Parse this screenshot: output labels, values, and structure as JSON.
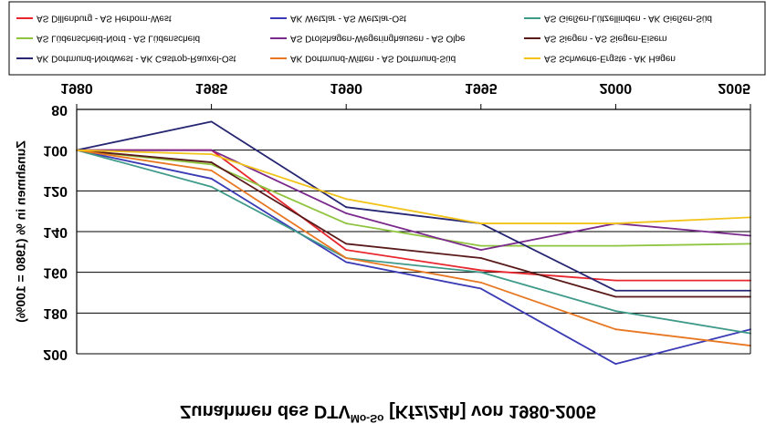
{
  "chart_data": {
    "type": "line",
    "title": "Zunahmen des DTV",
    "title_sup": "Mo-So",
    "title_suffix": " [Kfz/24h] von 1980-2005",
    "ylabel": "Zunahmen in % (1980 = 100%)",
    "xlabel": "",
    "orientation": "mirrored (image flipped vertically)",
    "x": [
      1980,
      1985,
      1990,
      1995,
      2000,
      2005
    ],
    "x_tick_labels": [
      "1980",
      "1985",
      "1990",
      "1995",
      "2000",
      "2005"
    ],
    "ylim": [
      80,
      200
    ],
    "y_ticks": [
      80,
      100,
      120,
      140,
      160,
      180,
      200
    ],
    "y_tick_labels": [
      "80",
      "100",
      "120",
      "140",
      "160",
      "180",
      "200"
    ],
    "grid": true,
    "legend_position": "top",
    "series": [
      {
        "name": "AS Dillenburg - AS Herborn-West",
        "color": "#e8262e",
        "values": [
          100,
          100,
          149,
          159,
          164,
          164
        ]
      },
      {
        "name": "AK Wetzlar - AS Wetzlar-Ost",
        "color": "#3b3bb5",
        "values": [
          100,
          114,
          155,
          168,
          205,
          188
        ]
      },
      {
        "name": "AS Gießen-Lützellinden - AK Gießen-Süd",
        "color": "#3f9a8a",
        "values": [
          100,
          118,
          153,
          160,
          179,
          190
        ]
      },
      {
        "name": "AS Lüdenscheid-Nord - AS Lüdenscheid",
        "color": "#8fc43f",
        "values": [
          100,
          107,
          136,
          147,
          147,
          146
        ]
      },
      {
        "name": "AS Drolshagen-Wegeringhausen - AS Olpe",
        "color": "#7a2a8c",
        "values": [
          100,
          100,
          131,
          149,
          136,
          142
        ]
      },
      {
        "name": "AS Siegen - AS Siegen-Eisern",
        "color": "#5a1a1a",
        "values": [
          100,
          106,
          146,
          153,
          172,
          172
        ]
      },
      {
        "name": "AK Dortmund-Nordwest - AK Castrop-Rauxel-Ost",
        "color": "#262673",
        "values": [
          100,
          86,
          128,
          136,
          169,
          169
        ]
      },
      {
        "name": "AK Dortmund-Witten - AS Dortmund-Süd",
        "color": "#e87722",
        "values": [
          100,
          110,
          153,
          165,
          188,
          196
        ]
      },
      {
        "name": "AS Schwerte-Ergste - AK Hagen",
        "color": "#f2c41a",
        "values": [
          100,
          102,
          124,
          136,
          136,
          133
        ]
      }
    ]
  }
}
